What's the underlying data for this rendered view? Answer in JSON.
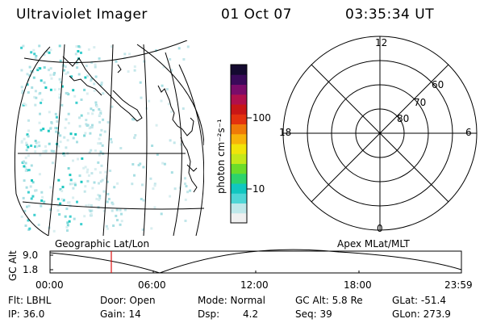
{
  "header": {
    "instrument": "Ultraviolet Imager",
    "date": "01 Oct 07",
    "time": "03:35:34 UT"
  },
  "colorbar": {
    "unit_label": "photon cm⁻²s⁻¹",
    "ticks": [
      "100",
      "10"
    ],
    "scale": "log",
    "colors": [
      "#f0f0f0",
      "#bfe8ea",
      "#4fd6d6",
      "#11c7c0",
      "#2dd36c",
      "#6bdc2a",
      "#c4e81a",
      "#f1e40a",
      "#f7b30a",
      "#ef7a08",
      "#e3320e",
      "#c81616",
      "#b0104c",
      "#7a0c6a",
      "#3a0a5a",
      "#140a30"
    ]
  },
  "polar_plot": {
    "mlt_labels": {
      "top": "12",
      "left": "18",
      "right": "6",
      "bottom": "0"
    },
    "lat_labels": [
      "60",
      "70",
      "80"
    ]
  },
  "timeline": {
    "ylabel": "GC Alt",
    "y_ticks": [
      "9.0",
      "1.8"
    ],
    "left_label": "Geographic Lat/Lon",
    "right_label": "Apex MLat/MLT",
    "x_ticks": [
      "00:00",
      "06:00",
      "12:00",
      "18:00",
      "23:59"
    ],
    "current_marker_time": "03:35:34"
  },
  "info": {
    "flt": "Flt: LBHL",
    "ip": "IP: 36.0",
    "door": "Door: Open",
    "gain": "Gain: 14",
    "mode": "Mode: Normal",
    "dsp_label": "Dsp:",
    "dsp_value": "4.2",
    "gcalt": "GC Alt: 5.8 Re",
    "seq": "Seq: 39",
    "glat": "GLat: -51.4",
    "glon": "GLon: 273.9"
  }
}
